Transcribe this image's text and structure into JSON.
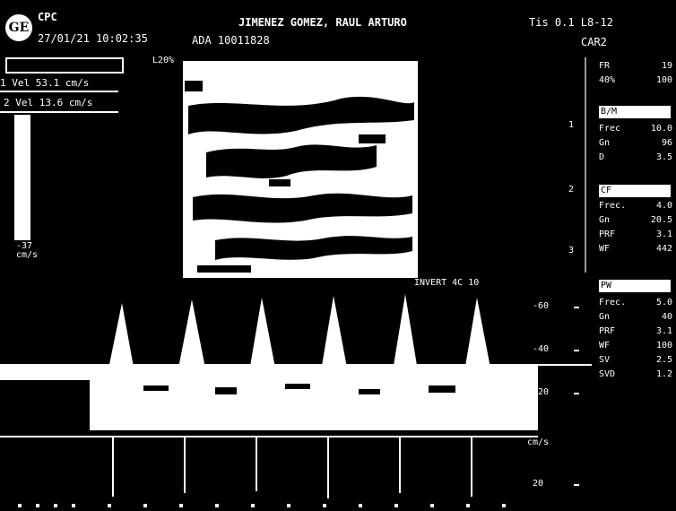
{
  "header": {
    "logo": "GE",
    "preset": "CPC",
    "datetime": "27/01/21 10:02:35",
    "patient": "JIMENEZ GOMEZ, RAUL ARTURO",
    "probe": "Tis 0.1 L8-12",
    "id": "ADA 10011828",
    "app": "CAR2"
  },
  "measurements": {
    "label1": "1 Vel 53.1 cm/s",
    "label2": "2 Vel 13.6 cm/s"
  },
  "colorbar": {
    "bottom_label": "-37\ncm/s"
  },
  "image": {
    "depth_label": "L20%",
    "doppler_label": "INVERT 4C 10"
  },
  "right_panel": {
    "top": [
      {
        "k": "FR",
        "v": "19"
      },
      {
        "k": "40%",
        "v": "100"
      }
    ],
    "blocks": [
      {
        "title": "B/M",
        "rows": [
          {
            "k": "Frec",
            "v": "10.0"
          },
          {
            "k": "Gn",
            "v": "96"
          },
          {
            "k": "D",
            "v": "3.5"
          }
        ]
      },
      {
        "title": "CF",
        "rows": [
          {
            "k": "Frec.",
            "v": "4.0"
          },
          {
            "k": "Gn",
            "v": "20.5"
          },
          {
            "k": "PRF",
            "v": "3.1"
          },
          {
            "k": "WF",
            "v": "442"
          }
        ]
      },
      {
        "title": "PW",
        "rows": [
          {
            "k": "Frec.",
            "v": "5.0"
          },
          {
            "k": "Gn",
            "v": "40"
          },
          {
            "k": "PRF",
            "v": "3.1"
          },
          {
            "k": "WF",
            "v": "100"
          },
          {
            "k": "SV",
            "v": "2.5"
          },
          {
            "k": "SVD",
            "v": "1.2"
          }
        ]
      }
    ]
  },
  "scale": {
    "labels": [
      "-60",
      "-40",
      "-20",
      "cm/s",
      "20"
    ]
  },
  "depth_marks": {
    "labels": [
      "1",
      "2",
      "3"
    ]
  }
}
